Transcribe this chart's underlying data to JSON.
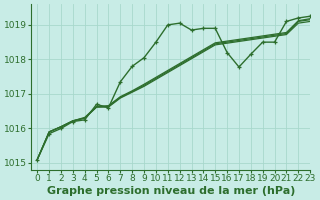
{
  "title": "Graphe pression niveau de la mer (hPa)",
  "bg_color": "#c8ece6",
  "grid_color": "#a8d8cc",
  "line_color": "#2d6e2d",
  "xlim": [
    -0.5,
    23
  ],
  "ylim": [
    1014.8,
    1019.6
  ],
  "xticks": [
    0,
    1,
    2,
    3,
    4,
    5,
    6,
    7,
    8,
    9,
    10,
    11,
    12,
    13,
    14,
    15,
    16,
    17,
    18,
    19,
    20,
    21,
    22,
    23
  ],
  "yticks": [
    1015,
    1016,
    1017,
    1018,
    1019
  ],
  "series": [
    {
      "y": [
        1015.1,
        1015.85,
        1016.0,
        1016.2,
        1016.25,
        1016.7,
        1016.6,
        1017.35,
        1017.8,
        1018.05,
        1018.5,
        1019.0,
        1019.05,
        1018.85,
        1018.9,
        1018.9,
        1018.2,
        1017.78,
        1018.15,
        1018.5,
        1018.5,
        1019.1,
        1019.2,
        1019.25
      ],
      "marker": true,
      "lw": 1.0
    },
    {
      "y": [
        1015.1,
        1015.9,
        1016.05,
        1016.22,
        1016.3,
        1016.62,
        1016.62,
        1016.88,
        1017.05,
        1017.22,
        1017.42,
        1017.62,
        1017.82,
        1018.02,
        1018.22,
        1018.42,
        1018.47,
        1018.52,
        1018.57,
        1018.62,
        1018.67,
        1018.72,
        1019.05,
        1019.1
      ],
      "marker": false,
      "lw": 0.9
    },
    {
      "y": [
        1015.1,
        1015.9,
        1016.05,
        1016.22,
        1016.3,
        1016.62,
        1016.64,
        1016.9,
        1017.07,
        1017.25,
        1017.45,
        1017.65,
        1017.85,
        1018.05,
        1018.25,
        1018.45,
        1018.5,
        1018.55,
        1018.6,
        1018.65,
        1018.7,
        1018.75,
        1019.1,
        1019.15
      ],
      "marker": false,
      "lw": 0.9
    },
    {
      "y": [
        1015.1,
        1015.9,
        1016.05,
        1016.22,
        1016.32,
        1016.64,
        1016.66,
        1016.92,
        1017.09,
        1017.28,
        1017.48,
        1017.68,
        1017.88,
        1018.08,
        1018.28,
        1018.48,
        1018.53,
        1018.58,
        1018.63,
        1018.68,
        1018.73,
        1018.78,
        1019.12,
        1019.18
      ],
      "marker": false,
      "lw": 0.9
    }
  ],
  "xlabel_fontsize": 8,
  "tick_fontsize": 6.5
}
